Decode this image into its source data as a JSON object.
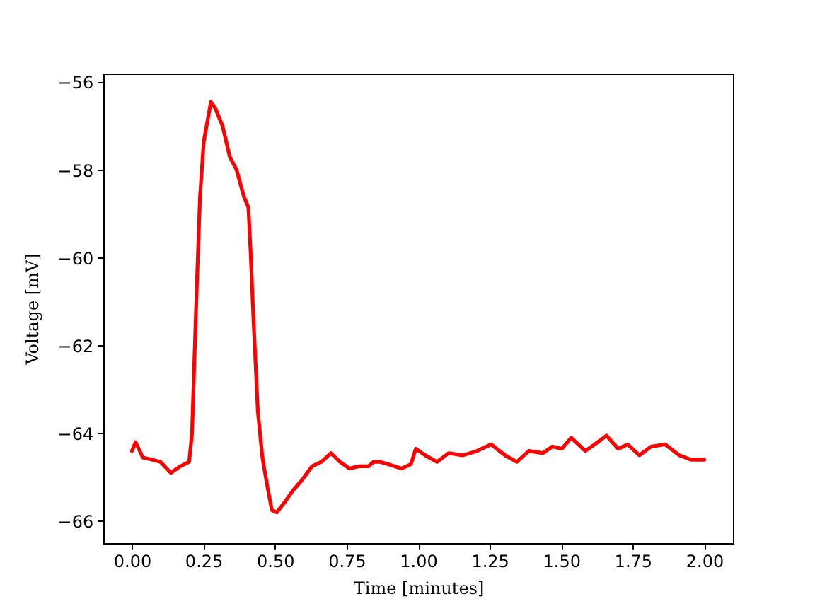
{
  "chart_data": {
    "type": "line",
    "xlabel": "Time [minutes]",
    "ylabel": "Voltage [mV]",
    "x": [
      0,
      0.013,
      0.038,
      0.07,
      0.1,
      0.136,
      0.169,
      0.2,
      0.21,
      0.218,
      0.227,
      0.238,
      0.251,
      0.276,
      0.292,
      0.317,
      0.342,
      0.366,
      0.391,
      0.407,
      0.415,
      0.424,
      0.432,
      0.44,
      0.456,
      0.473,
      0.489,
      0.506,
      0.53,
      0.563,
      0.596,
      0.629,
      0.662,
      0.695,
      0.727,
      0.76,
      0.793,
      0.826,
      0.844,
      0.867,
      0.893,
      0.942,
      0.975,
      0.992,
      1.025,
      1.066,
      1.107,
      1.156,
      1.206,
      1.255,
      1.304,
      1.345,
      1.387,
      1.436,
      1.469,
      1.502,
      1.535,
      1.584,
      1.617,
      1.658,
      1.699,
      1.732,
      1.773,
      1.814,
      1.863,
      1.913,
      1.954,
      2.0
    ],
    "series": [
      {
        "color": "#ff0000",
        "values": [
          -64.4,
          -64.2,
          -64.55,
          -64.6,
          -64.65,
          -64.9,
          -64.75,
          -64.65,
          -64.0,
          -62.4,
          -60.6,
          -58.6,
          -57.35,
          -56.45,
          -56.6,
          -57.0,
          -57.7,
          -58.0,
          -58.6,
          -58.85,
          -59.9,
          -61.3,
          -62.4,
          -63.5,
          -64.55,
          -65.2,
          -65.75,
          -65.8,
          -65.6,
          -65.3,
          -65.05,
          -64.75,
          -64.65,
          -64.45,
          -64.65,
          -64.8,
          -64.75,
          -64.75,
          -64.65,
          -64.65,
          -64.7,
          -64.8,
          -64.7,
          -64.35,
          -64.5,
          -64.65,
          -64.45,
          -64.5,
          -64.4,
          -64.25,
          -64.5,
          -64.65,
          -64.4,
          -64.45,
          -64.3,
          -64.35,
          -64.1,
          -64.4,
          -64.25,
          -64.05,
          -64.35,
          -64.25,
          -64.5,
          -64.3,
          -64.25,
          -64.5,
          -64.6,
          -64.6
        ]
      }
    ],
    "xlim": [
      -0.1,
      2.1
    ],
    "ylim": [
      -66.5,
      -55.8
    ],
    "xticks": [
      {
        "value": 0,
        "label": "0.00"
      },
      {
        "value": 0.25,
        "label": "0.25"
      },
      {
        "value": 0.5,
        "label": "0.50"
      },
      {
        "value": 0.75,
        "label": "0.75"
      },
      {
        "value": 1,
        "label": "1.00"
      },
      {
        "value": 1.25,
        "label": "1.25"
      },
      {
        "value": 1.5,
        "label": "1.50"
      },
      {
        "value": 1.75,
        "label": "1.75"
      },
      {
        "value": 2,
        "label": "2.00"
      }
    ],
    "yticks": [
      {
        "value": -66,
        "label": "−66"
      },
      {
        "value": -64,
        "label": "−64"
      },
      {
        "value": -62,
        "label": "−62"
      },
      {
        "value": -60,
        "label": "−60"
      },
      {
        "value": -58,
        "label": "−58"
      },
      {
        "value": -56,
        "label": "−56"
      }
    ]
  }
}
